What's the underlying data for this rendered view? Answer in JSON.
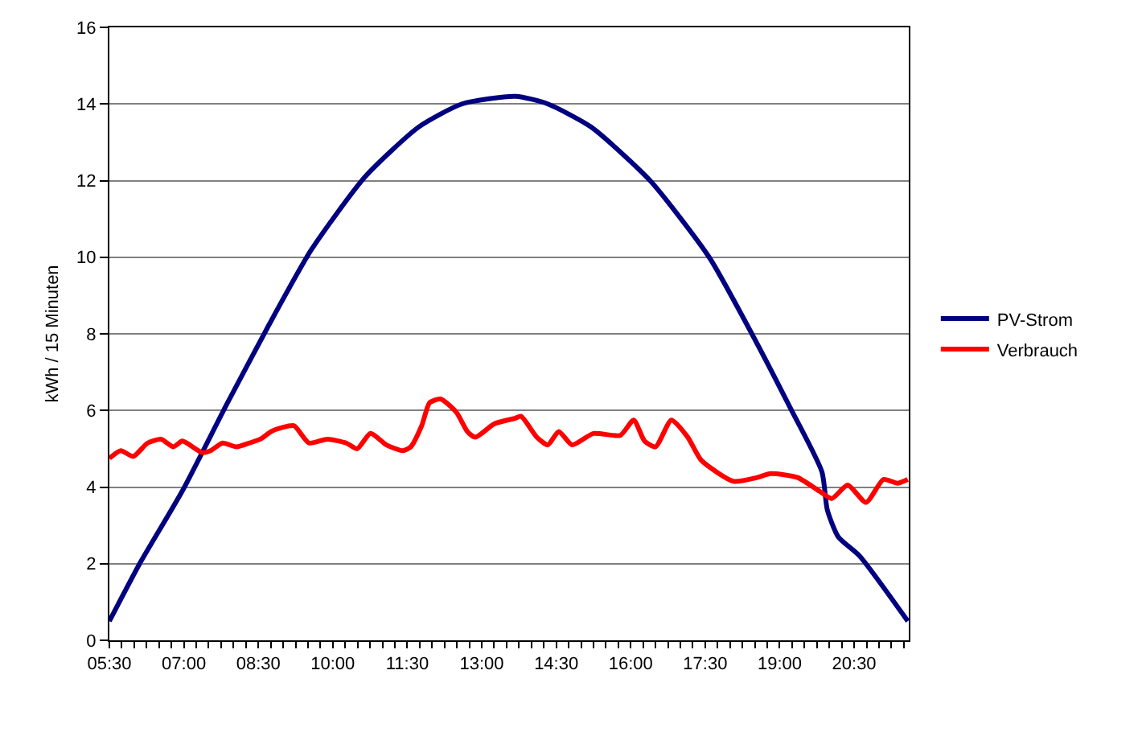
{
  "chart_data": {
    "type": "line",
    "ylabel": "kWh / 15 Minuten",
    "xlim": [
      5.5,
      21.6
    ],
    "xticks": [
      {
        "value": 5.5,
        "label": "05:30"
      },
      {
        "value": 5.75,
        "label": null
      },
      {
        "value": 6,
        "label": null
      },
      {
        "value": 6.25,
        "label": null
      },
      {
        "value": 6.5,
        "label": null
      },
      {
        "value": 6.75,
        "label": null
      },
      {
        "value": 7,
        "label": "07:00"
      },
      {
        "value": 7.25,
        "label": null
      },
      {
        "value": 7.5,
        "label": null
      },
      {
        "value": 7.75,
        "label": null
      },
      {
        "value": 8,
        "label": null
      },
      {
        "value": 8.25,
        "label": null
      },
      {
        "value": 8.5,
        "label": "08:30"
      },
      {
        "value": 8.75,
        "label": null
      },
      {
        "value": 9,
        "label": null
      },
      {
        "value": 9.25,
        "label": null
      },
      {
        "value": 9.5,
        "label": null
      },
      {
        "value": 9.75,
        "label": null
      },
      {
        "value": 10,
        "label": "10:00"
      },
      {
        "value": 10.25,
        "label": null
      },
      {
        "value": 10.5,
        "label": null
      },
      {
        "value": 10.75,
        "label": null
      },
      {
        "value": 11,
        "label": null
      },
      {
        "value": 11.25,
        "label": null
      },
      {
        "value": 11.5,
        "label": "11:30"
      },
      {
        "value": 11.75,
        "label": null
      },
      {
        "value": 12,
        "label": null
      },
      {
        "value": 12.25,
        "label": null
      },
      {
        "value": 12.5,
        "label": null
      },
      {
        "value": 12.75,
        "label": null
      },
      {
        "value": 13,
        "label": "13:00"
      },
      {
        "value": 13.25,
        "label": null
      },
      {
        "value": 13.5,
        "label": null
      },
      {
        "value": 13.75,
        "label": null
      },
      {
        "value": 14,
        "label": null
      },
      {
        "value": 14.25,
        "label": null
      },
      {
        "value": 14.5,
        "label": "14:30"
      },
      {
        "value": 14.75,
        "label": null
      },
      {
        "value": 15,
        "label": null
      },
      {
        "value": 15.25,
        "label": null
      },
      {
        "value": 15.5,
        "label": null
      },
      {
        "value": 15.75,
        "label": null
      },
      {
        "value": 16,
        "label": "16:00"
      },
      {
        "value": 16.25,
        "label": null
      },
      {
        "value": 16.5,
        "label": null
      },
      {
        "value": 16.75,
        "label": null
      },
      {
        "value": 17,
        "label": null
      },
      {
        "value": 17.25,
        "label": null
      },
      {
        "value": 17.5,
        "label": "17:30"
      },
      {
        "value": 17.75,
        "label": null
      },
      {
        "value": 18,
        "label": null
      },
      {
        "value": 18.25,
        "label": null
      },
      {
        "value": 18.5,
        "label": null
      },
      {
        "value": 18.75,
        "label": null
      },
      {
        "value": 19,
        "label": "19:00"
      },
      {
        "value": 19.25,
        "label": null
      },
      {
        "value": 19.5,
        "label": null
      },
      {
        "value": 19.75,
        "label": null
      },
      {
        "value": 20,
        "label": null
      },
      {
        "value": 20.25,
        "label": null
      },
      {
        "value": 20.5,
        "label": "20:30"
      },
      {
        "value": 20.75,
        "label": null
      },
      {
        "value": 21,
        "label": null
      },
      {
        "value": 21.25,
        "label": null
      },
      {
        "value": 21.5,
        "label": null
      }
    ],
    "ylim": [
      0,
      16
    ],
    "yticks": [
      0,
      2,
      4,
      6,
      8,
      10,
      12,
      14,
      16
    ],
    "grid": "y",
    "legend": "right",
    "series": [
      {
        "name": "PV-Strom",
        "color": "#000080",
        "x": [
          5.5,
          6.11,
          6.97,
          7.84,
          8.7,
          9.57,
          10.65,
          11.73,
          12.6,
          13.68,
          14.33,
          15.2,
          16.39,
          17.58,
          18.44,
          19.2,
          19.85,
          19.96,
          20.18,
          20.61,
          21.58
        ],
        "values": [
          0.5,
          2.0,
          3.9,
          6.1,
          8.2,
          10.2,
          12.1,
          13.4,
          14.0,
          14.2,
          14.0,
          13.4,
          12.0,
          10.0,
          8.0,
          6.1,
          4.4,
          3.4,
          2.7,
          2.2,
          0.5
        ]
      },
      {
        "name": "Verbrauch",
        "color": "#ff0000",
        "x": [
          5.5,
          5.73,
          5.98,
          6.27,
          6.54,
          6.79,
          6.97,
          7.37,
          7.54,
          7.78,
          8.06,
          8.32,
          8.54,
          8.76,
          8.97,
          9.22,
          9.52,
          9.89,
          10.27,
          10.49,
          10.76,
          11.08,
          11.41,
          11.57,
          11.79,
          11.95,
          12.17,
          12.49,
          12.71,
          12.87,
          13.25,
          13.68,
          13.79,
          14.11,
          14.33,
          14.55,
          14.82,
          15.25,
          15.79,
          16.06,
          16.28,
          16.5,
          16.82,
          17.15,
          17.42,
          18.07,
          18.55,
          18.82,
          19.36,
          19.85,
          20.05,
          20.37,
          20.74,
          21.09,
          21.37,
          21.58
        ],
        "values": [
          4.75,
          4.95,
          4.8,
          5.15,
          5.25,
          5.05,
          5.2,
          4.9,
          4.95,
          5.15,
          5.05,
          5.15,
          5.25,
          5.45,
          5.55,
          5.6,
          5.15,
          5.25,
          5.15,
          5.0,
          5.4,
          5.1,
          4.95,
          5.05,
          5.6,
          6.2,
          6.3,
          5.95,
          5.45,
          5.3,
          5.65,
          5.8,
          5.85,
          5.3,
          5.1,
          5.45,
          5.1,
          5.4,
          5.35,
          5.75,
          5.2,
          5.05,
          5.75,
          5.3,
          4.7,
          4.15,
          4.25,
          4.35,
          4.25,
          3.85,
          3.7,
          4.05,
          3.6,
          4.2,
          4.1,
          4.2
        ]
      }
    ]
  }
}
